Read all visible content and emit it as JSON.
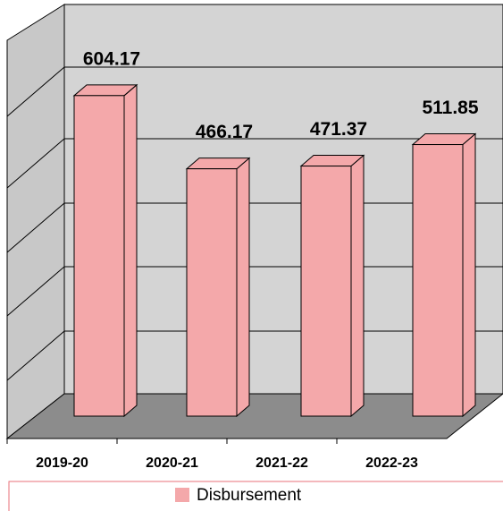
{
  "chart_data": {
    "type": "bar",
    "categories": [
      "2019-20",
      "2020-21",
      "2021-22",
      "2022-23"
    ],
    "series": [
      {
        "name": "Disbursement",
        "color": "#f4a8aa",
        "values": [
          604.17,
          466.17,
          471.37,
          511.85
        ]
      }
    ],
    "ylim": [
      0,
      700
    ]
  }
}
